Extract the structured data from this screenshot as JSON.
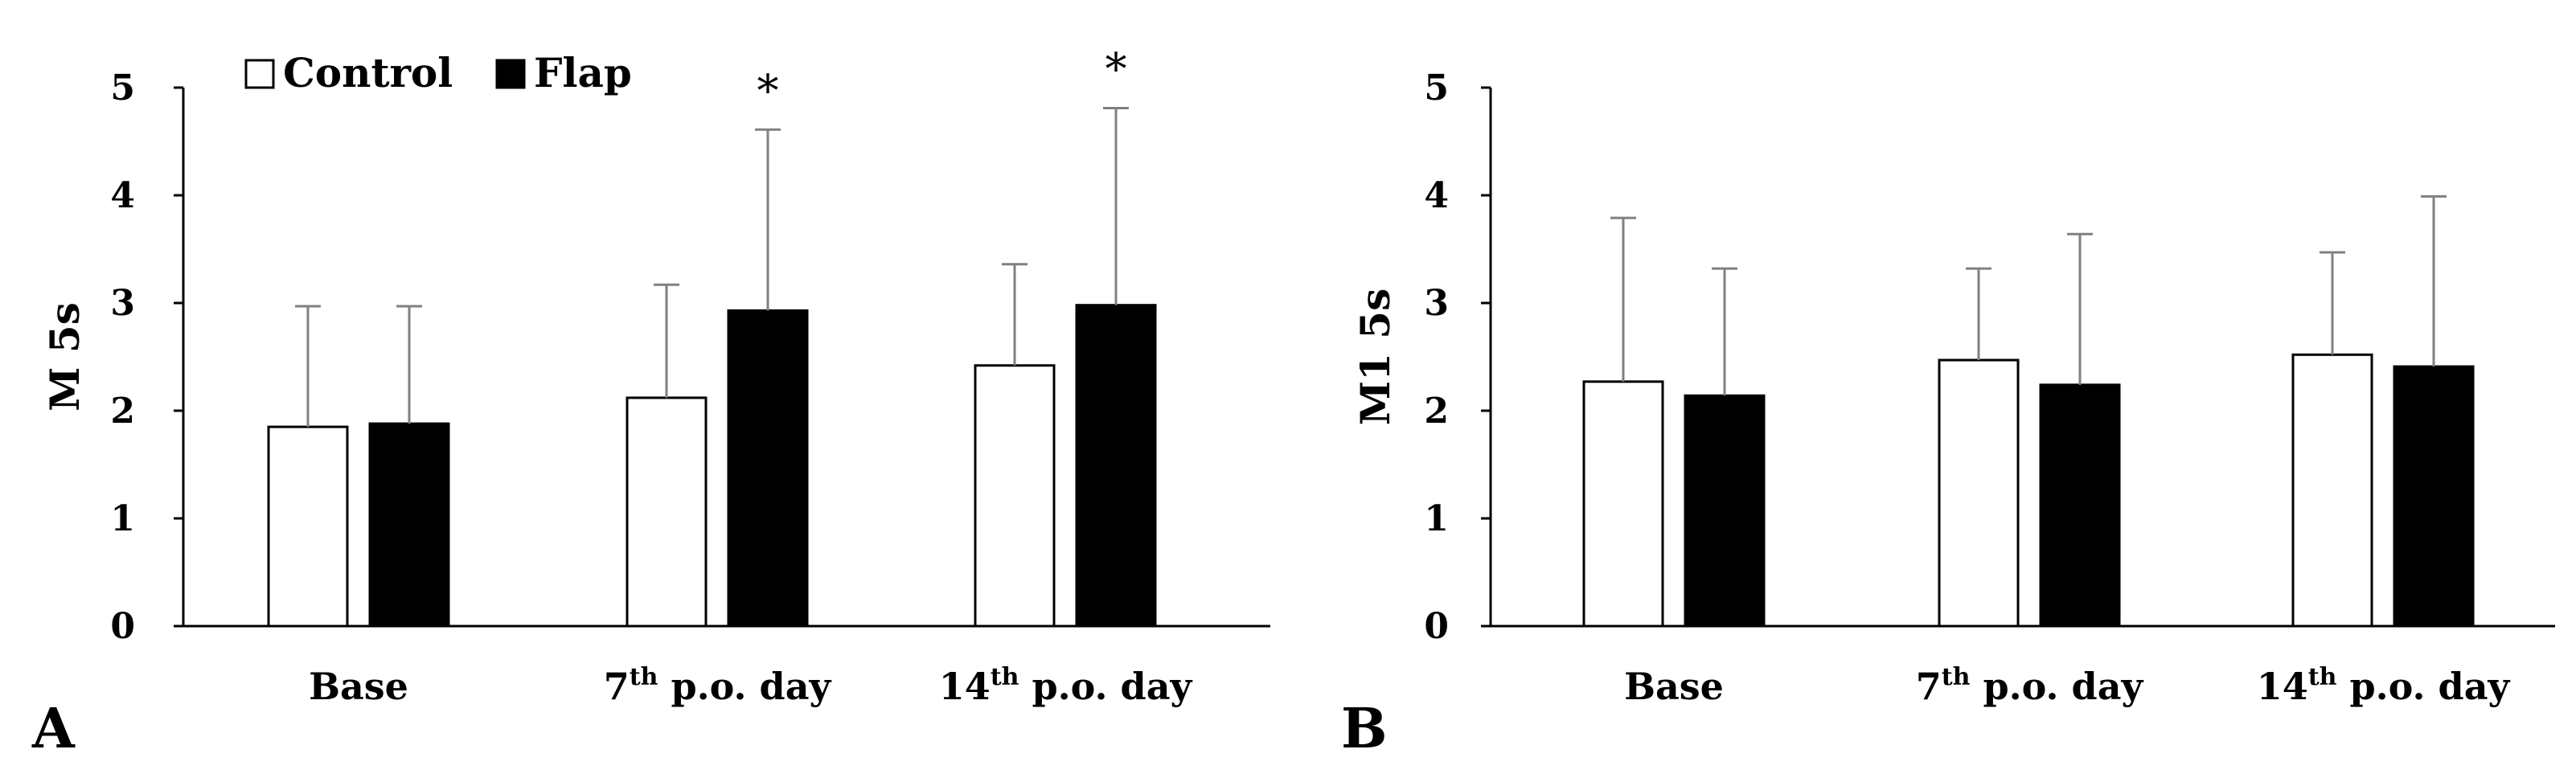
{
  "legend": {
    "control_label": "Control",
    "flap_label": "Flap"
  },
  "colors": {
    "control_fill": "#ffffff",
    "flap_fill": "#000000",
    "bar_stroke": "#000000",
    "error_bar": "#808080",
    "axis": "#000000"
  },
  "chart_data": [
    {
      "type": "bar",
      "panel_label": "A",
      "ylabel": "M 5s",
      "ylim": [
        0,
        5
      ],
      "yticks": [
        "0",
        "1",
        "2",
        "3",
        "4",
        "5"
      ],
      "grid": false,
      "legend_position": "top-left",
      "categories": [
        {
          "main": "Base",
          "sup": "",
          "suffix": ""
        },
        {
          "main": "7",
          "sup": "th",
          "suffix": " p.o. day"
        },
        {
          "main": "14",
          "sup": "th",
          "suffix": " p.o. day"
        }
      ],
      "series": [
        {
          "name": "Control",
          "values": [
            1.85,
            2.12,
            2.42
          ],
          "errors": [
            1.12,
            1.05,
            0.94
          ]
        },
        {
          "name": "Flap",
          "values": [
            1.88,
            2.93,
            2.98
          ],
          "errors": [
            1.09,
            1.68,
            1.83
          ]
        }
      ],
      "annotations": [
        {
          "text": "*",
          "category_index": 1,
          "series_index": 1
        },
        {
          "text": "*",
          "category_index": 2,
          "series_index": 1
        }
      ]
    },
    {
      "type": "bar",
      "panel_label": "B",
      "ylabel": "M1 5s",
      "ylim": [
        0,
        5
      ],
      "yticks": [
        "0",
        "1",
        "2",
        "3",
        "4",
        "5"
      ],
      "grid": false,
      "categories": [
        {
          "main": "Base",
          "sup": "",
          "suffix": ""
        },
        {
          "main": "7",
          "sup": "th",
          "suffix": " p.o. day"
        },
        {
          "main": "14",
          "sup": "th",
          "suffix": " p.o. day"
        }
      ],
      "series": [
        {
          "name": "Control",
          "values": [
            2.27,
            2.47,
            2.52
          ],
          "errors": [
            1.52,
            0.85,
            0.95
          ]
        },
        {
          "name": "Flap",
          "values": [
            2.14,
            2.24,
            2.41
          ],
          "errors": [
            1.18,
            1.4,
            1.58
          ]
        }
      ],
      "annotations": []
    }
  ]
}
